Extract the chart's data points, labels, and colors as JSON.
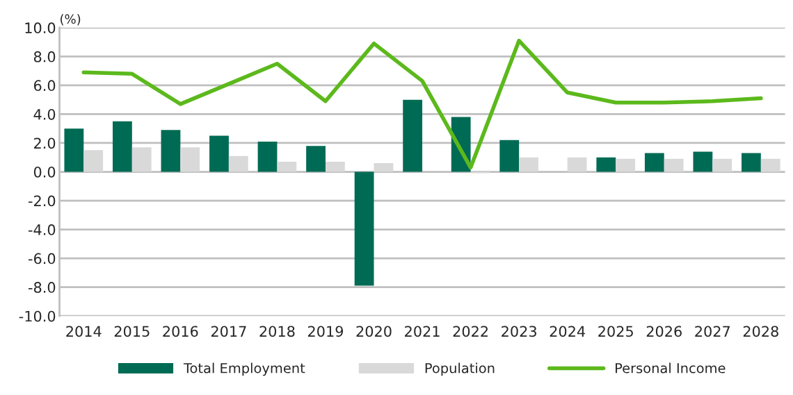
{
  "chart_data": {
    "type": "bar",
    "ylabel": "(%)",
    "categories": [
      "2014",
      "2015",
      "2016",
      "2017",
      "2018",
      "2019",
      "2020",
      "2021",
      "2022",
      "2023",
      "2024",
      "2025",
      "2026",
      "2027",
      "2028"
    ],
    "series": [
      {
        "name": "Total Employment",
        "color": "#006b54",
        "values": [
          3.0,
          3.5,
          2.9,
          2.5,
          2.1,
          1.8,
          -7.9,
          5.0,
          3.8,
          2.2,
          null,
          1.0,
          1.3,
          1.4,
          1.3
        ]
      },
      {
        "name": "Population",
        "color": "#d9d9d9",
        "values": [
          1.5,
          1.7,
          1.7,
          1.1,
          0.7,
          0.7,
          0.6,
          null,
          -0.1,
          1.0,
          1.0,
          0.9,
          0.9,
          0.9,
          0.9
        ]
      },
      {
        "name": "Personal Income",
        "type": "line",
        "color": "#5cb91c",
        "values": [
          6.9,
          6.8,
          4.7,
          6.1,
          7.5,
          4.9,
          8.9,
          6.3,
          0.3,
          9.1,
          5.5,
          4.8,
          4.8,
          4.9,
          5.1
        ]
      }
    ],
    "ylim": [
      -10,
      10
    ],
    "yticks": [
      {
        "value": -10,
        "label": "-10.0"
      },
      {
        "value": -8,
        "label": "-8.0"
      },
      {
        "value": -6,
        "label": "-6.0"
      },
      {
        "value": -4,
        "label": "-4.0"
      },
      {
        "value": -2,
        "label": "-2.0"
      },
      {
        "value": 0,
        "label": "0.0"
      },
      {
        "value": 2,
        "label": "2.0"
      },
      {
        "value": 4,
        "label": "4.0"
      },
      {
        "value": 6,
        "label": "6.0"
      },
      {
        "value": 8,
        "label": "8.0"
      },
      {
        "value": 10,
        "label": "10.0"
      }
    ],
    "grid": "y",
    "legend": "bottom",
    "marker": "none",
    "line_style": "solid"
  }
}
